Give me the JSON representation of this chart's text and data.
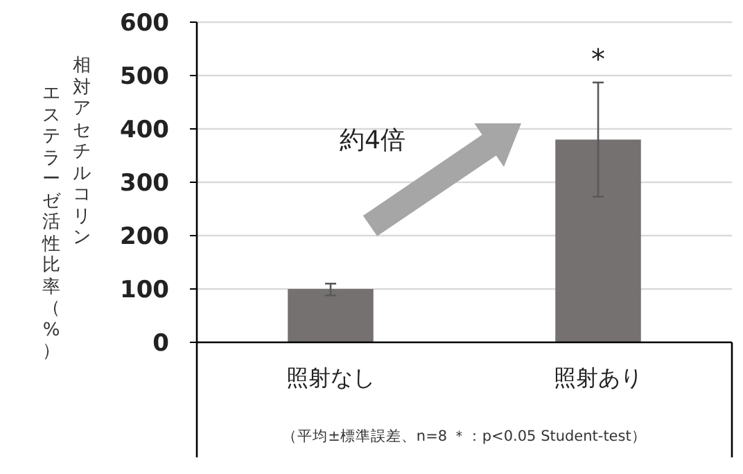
{
  "chart_data": {
    "type": "bar",
    "categories": [
      "照射なし",
      "照射あり"
    ],
    "values": [
      100,
      380
    ],
    "errors": [
      [
        88,
        110
      ],
      [
        273,
        487
      ]
    ],
    "color": "#767171",
    "ylabel": "相対アセチルコリンエステラーゼ活性比率（%）",
    "annotations": [
      {
        "text": "*",
        "x": "照射あり",
        "y": 487
      },
      "約4倍",
      "（平均±標準誤差、n=8 ＊：p<0.05 Student-test）"
    ],
    "ylim": [
      0,
      600
    ],
    "yticks": [
      0,
      100,
      200,
      300,
      400,
      500,
      600
    ],
    "grid": "y"
  }
}
